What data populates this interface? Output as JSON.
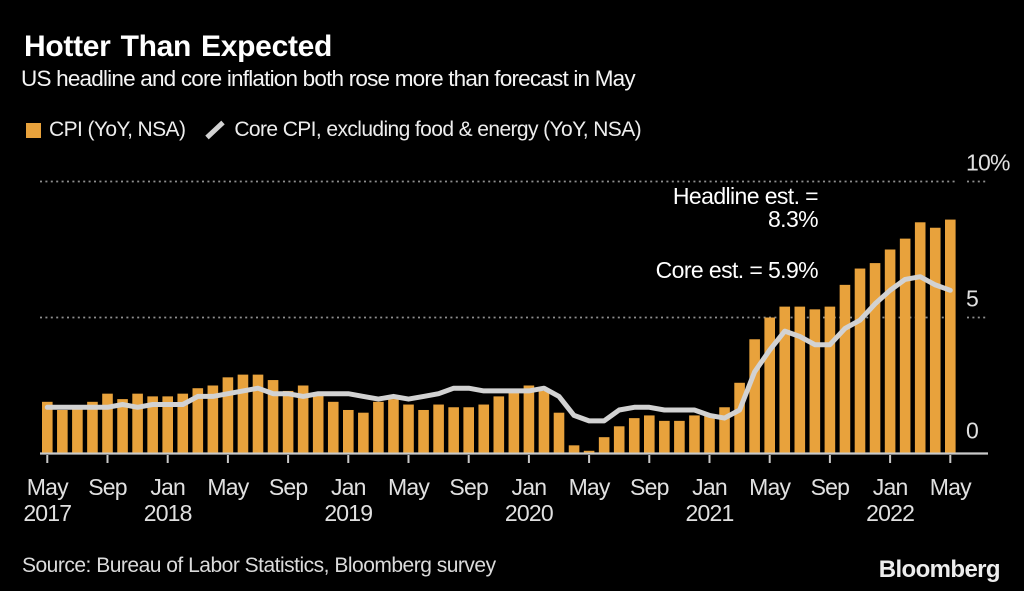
{
  "header": {
    "title": "Hotter Than Expected",
    "subtitle": "US headline and core inflation both rose more than forecast in May"
  },
  "legend": {
    "items": [
      {
        "label": "CPI (YoY, NSA)",
        "marker": "square-swatch-icon",
        "color": "#E8A23C"
      },
      {
        "label": "Core CPI, excluding food & energy (YoY, NSA)",
        "marker": "slash-line-icon",
        "color": "#D2D2D2"
      }
    ]
  },
  "annotations": [
    {
      "lines": [
        "Headline est. =",
        "8.3%"
      ]
    },
    {
      "lines": [
        "Core est. = 5.9%"
      ]
    }
  ],
  "footer": {
    "source": "Source: Bureau of Labor Statistics, Bloomberg survey",
    "brand": "Bloomberg"
  },
  "colors": {
    "background": "#000000",
    "bar": "#E8A23C",
    "line": "#D2D2D2",
    "grid": "#8F8F8F",
    "axis": "#C9C9C9",
    "axis_text": "#E0E0E0",
    "text_primary": "#FFFFFF"
  },
  "chart_data": {
    "type": "combo",
    "title": "Hotter Than Expected",
    "subtitle": "US headline and core inflation both rose more than forecast in May",
    "x_unit": "month",
    "x_range": "May 2017 - May 2022",
    "grid": "dotted horizontal at 5 and 10",
    "legend_position": "top-left",
    "y_axis": {
      "min": 0,
      "max": 10,
      "gridlines": [
        10,
        5
      ],
      "labels": [
        {
          "value": 10,
          "text": "10%"
        },
        {
          "value": 5,
          "text": "5"
        },
        {
          "value": 0,
          "text": "0"
        }
      ]
    },
    "x_ticks": [
      {
        "index": 0,
        "month": "May",
        "year": "2017"
      },
      {
        "index": 4,
        "month": "Sep"
      },
      {
        "index": 8,
        "month": "Jan",
        "year": "2018"
      },
      {
        "index": 12,
        "month": "May"
      },
      {
        "index": 16,
        "month": "Sep"
      },
      {
        "index": 20,
        "month": "Jan",
        "year": "2019"
      },
      {
        "index": 24,
        "month": "May"
      },
      {
        "index": 28,
        "month": "Sep"
      },
      {
        "index": 32,
        "month": "Jan",
        "year": "2020"
      },
      {
        "index": 36,
        "month": "May"
      },
      {
        "index": 40,
        "month": "Sep"
      },
      {
        "index": 44,
        "month": "Jan",
        "year": "2021"
      },
      {
        "index": 48,
        "month": "May"
      },
      {
        "index": 52,
        "month": "Sep"
      },
      {
        "index": 56,
        "month": "Jan",
        "year": "2022"
      },
      {
        "index": 60,
        "month": "May"
      }
    ],
    "series": [
      {
        "name": "CPI (YoY, NSA)",
        "type": "bar",
        "color": "#E8A23C",
        "values": [
          1.9,
          1.6,
          1.7,
          1.9,
          2.2,
          2.0,
          2.2,
          2.1,
          2.1,
          2.2,
          2.4,
          2.5,
          2.8,
          2.9,
          2.9,
          2.7,
          2.3,
          2.5,
          2.2,
          1.9,
          1.6,
          1.5,
          1.9,
          2.0,
          1.8,
          1.6,
          1.8,
          1.7,
          1.7,
          1.8,
          2.1,
          2.3,
          2.5,
          2.3,
          1.5,
          0.3,
          0.1,
          0.6,
          1.0,
          1.3,
          1.4,
          1.2,
          1.2,
          1.4,
          1.4,
          1.7,
          2.6,
          4.2,
          5.0,
          5.4,
          5.4,
          5.3,
          5.4,
          6.2,
          6.8,
          7.0,
          7.5,
          7.9,
          8.5,
          8.3,
          8.6
        ]
      },
      {
        "name": "Core CPI, excluding food & energy (YoY, NSA)",
        "type": "line",
        "color": "#D2D2D2",
        "values": [
          1.7,
          1.7,
          1.7,
          1.7,
          1.7,
          1.8,
          1.7,
          1.8,
          1.8,
          1.8,
          2.1,
          2.1,
          2.2,
          2.3,
          2.4,
          2.2,
          2.2,
          2.1,
          2.2,
          2.2,
          2.2,
          2.1,
          2.0,
          2.1,
          2.0,
          2.1,
          2.2,
          2.4,
          2.4,
          2.3,
          2.3,
          2.3,
          2.3,
          2.4,
          2.1,
          1.4,
          1.2,
          1.2,
          1.6,
          1.7,
          1.7,
          1.6,
          1.6,
          1.6,
          1.4,
          1.3,
          1.6,
          3.0,
          3.8,
          4.5,
          4.3,
          4.0,
          4.0,
          4.6,
          4.9,
          5.5,
          6.0,
          6.4,
          6.5,
          6.2,
          6.0
        ]
      }
    ]
  }
}
